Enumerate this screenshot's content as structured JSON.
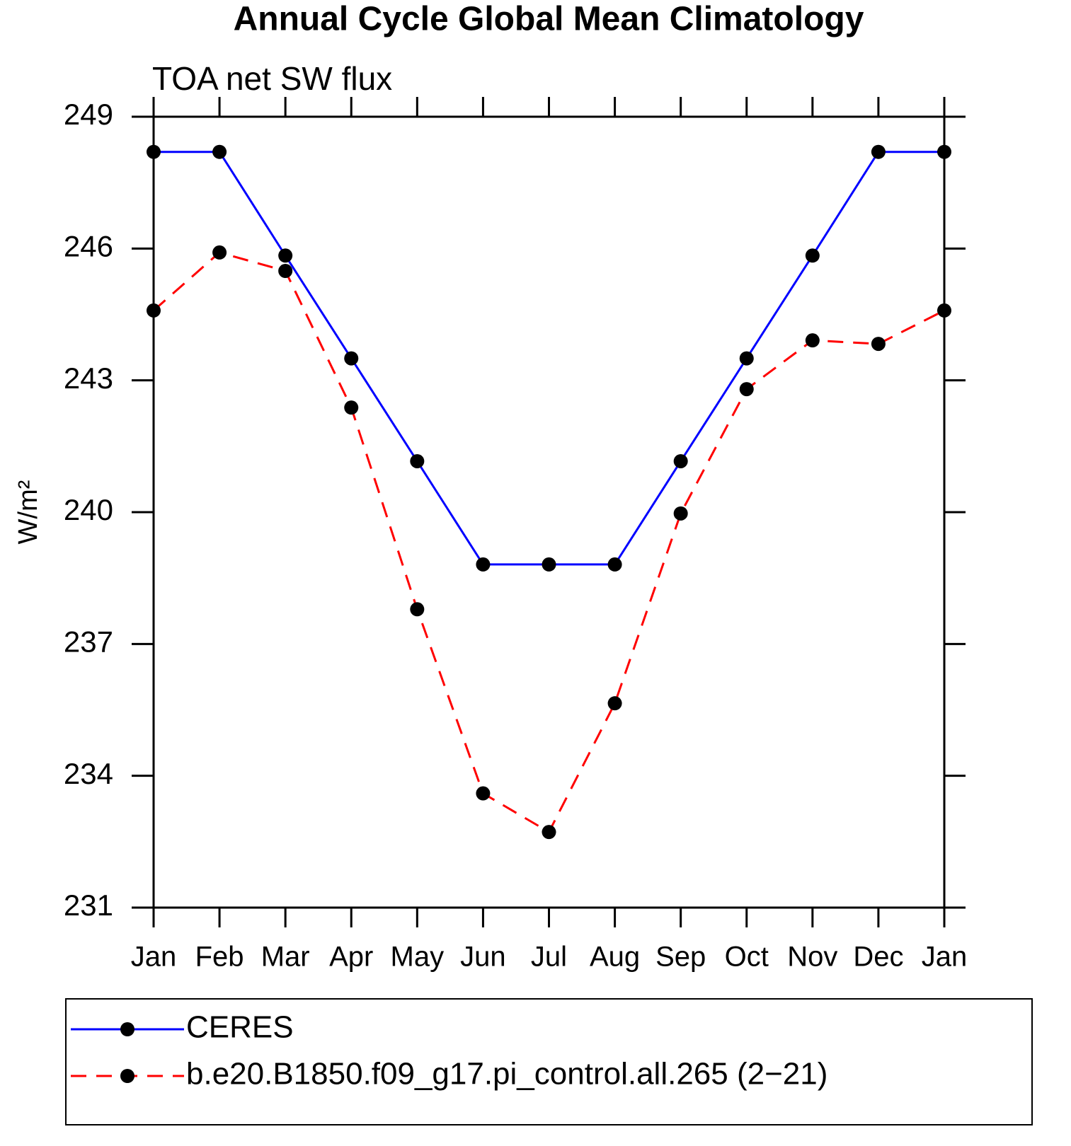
{
  "chart_data": {
    "type": "line",
    "title": "Annual Cycle Global Mean Climatology",
    "subtitle": "TOA net SW flux",
    "y_label": "W/m²",
    "categories": [
      "Jan",
      "Feb",
      "Mar",
      "Apr",
      "May",
      "Jun",
      "Jul",
      "Aug",
      "Sep",
      "Oct",
      "Nov",
      "Dec",
      "Jan"
    ],
    "series": [
      {
        "name": "CERES",
        "color": "#0000ff",
        "line_style": "solid",
        "marker_color": "#000000",
        "values": [
          248.2,
          248.2,
          245.84,
          243.5,
          241.16,
          238.81,
          238.81,
          238.81,
          241.16,
          243.5,
          245.84,
          248.2,
          248.2
        ]
      },
      {
        "name": "b.e20.B1850.f09_g17.pi_control.all.265 (2−21)",
        "color": "#ff0000",
        "line_style": "dashed",
        "marker_color": "#000000",
        "values": [
          244.59,
          245.91,
          245.49,
          242.38,
          237.79,
          233.6,
          232.72,
          235.65,
          239.97,
          242.8,
          243.91,
          243.83,
          244.59
        ]
      }
    ],
    "ylim": [
      231,
      249
    ],
    "yticks": [
      231,
      234,
      237,
      240,
      243,
      246,
      249
    ],
    "grid": false
  }
}
